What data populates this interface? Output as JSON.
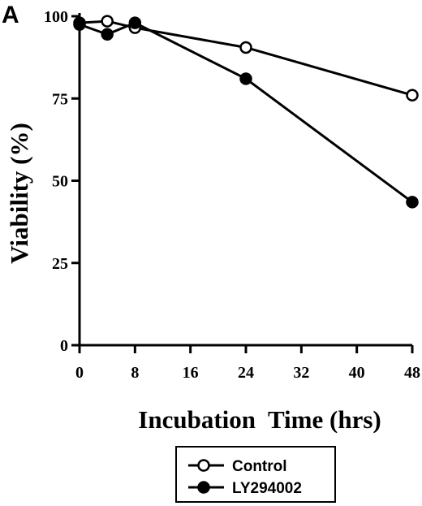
{
  "panel_label": "A",
  "chart_data": {
    "type": "line",
    "xlabel": "Incubation  Time (hrs)",
    "ylabel": "Viability (%)",
    "xlim": [
      0,
      48
    ],
    "ylim": [
      0,
      100
    ],
    "xticks": [
      0,
      8,
      16,
      24,
      32,
      40,
      48
    ],
    "yticks": [
      0,
      25,
      50,
      75,
      100
    ],
    "grid": false,
    "legend": "bottom-center",
    "series": [
      {
        "name": "Control",
        "marker": "open-circle",
        "x": [
          0,
          4,
          8,
          24,
          48
        ],
        "y": [
          98,
          98.5,
          96.5,
          90.5,
          76
        ]
      },
      {
        "name": "LY294002",
        "marker": "filled-circle",
        "x": [
          0,
          4,
          8,
          24,
          48
        ],
        "y": [
          97.5,
          94.5,
          98,
          81,
          43.5
        ]
      }
    ]
  }
}
